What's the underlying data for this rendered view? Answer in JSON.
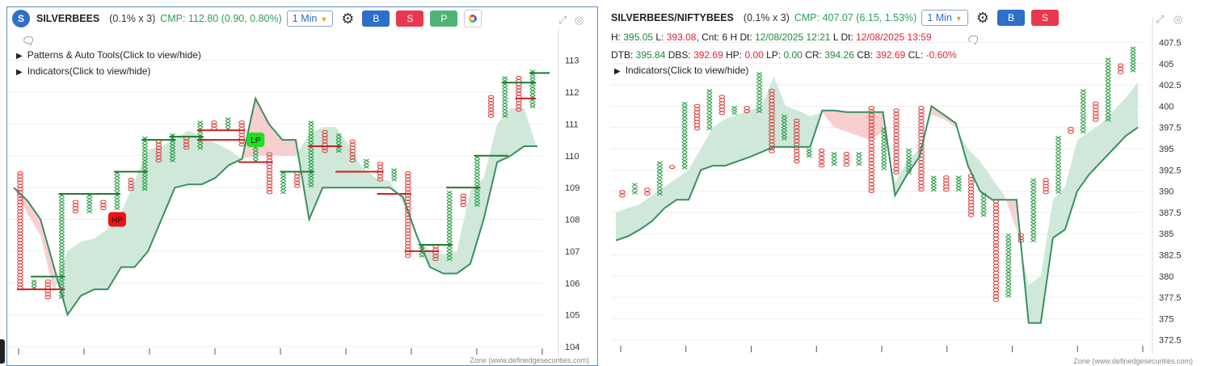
{
  "panels": [
    {
      "symbol": "SILVERBEES",
      "avatar": "S",
      "qty": "(0.1% x 3)",
      "cmp": "CMP: 112.80 (0.90, 0.80%)",
      "timeframe": "1 Min",
      "buttons": {
        "buy": "B",
        "sell": "S",
        "p": "P"
      },
      "toggles": [
        "Patterns & Auto Tools(Click to view/hide)",
        "Indicators(Click to view/hide)"
      ],
      "zone": "Zone (www.definedgesecurities.com)"
    },
    {
      "symbol": "SILVERBEES/NIFTYBEES",
      "qty": "(0.1% x 3)",
      "cmp": "CMP: 407.07 (6.15, 1.53%)",
      "timeframe": "1 Min",
      "buttons": {
        "buy": "B",
        "sell": "S"
      },
      "info1": [
        {
          "t": "H: ",
          "c": ""
        },
        {
          "t": "395.05",
          "c": "g"
        },
        {
          "t": " L: ",
          "c": ""
        },
        {
          "t": "393.08",
          "c": "r"
        },
        {
          "t": ", Cnt: 6 H Dt: ",
          "c": ""
        },
        {
          "t": "12/08/2025 12:21",
          "c": "g"
        },
        {
          "t": " L Dt: ",
          "c": ""
        },
        {
          "t": "12/08/2025 13:59",
          "c": "r"
        }
      ],
      "info2": [
        {
          "t": "DTB: ",
          "c": ""
        },
        {
          "t": "395.84",
          "c": "g"
        },
        {
          "t": " DBS: ",
          "c": ""
        },
        {
          "t": "392.69",
          "c": "r"
        },
        {
          "t": " HP: ",
          "c": ""
        },
        {
          "t": "0.00",
          "c": "r"
        },
        {
          "t": " LP: ",
          "c": ""
        },
        {
          "t": "0.00",
          "c": "g"
        },
        {
          "t": " CR: ",
          "c": ""
        },
        {
          "t": "394.26",
          "c": "g"
        },
        {
          "t": " CB: ",
          "c": ""
        },
        {
          "t": "392.69",
          "c": "r"
        },
        {
          "t": " CL: ",
          "c": ""
        },
        {
          "t": "-0.60%",
          "c": "r"
        }
      ],
      "toggles": [
        "Indicators(Click to view/hide)"
      ],
      "zone": "Zone (www.definedgesecurities.com)"
    }
  ],
  "colors": {
    "x": "#1f9a3c",
    "o": "#e23a3a",
    "line": "#3a8f60",
    "fill_up": "#cfe8da",
    "fill_dn": "#f7cfcf",
    "level_g": "#1f7a2c",
    "level_r": "#cc1f1f"
  },
  "chart_data": [
    {
      "type": "point-and-figure",
      "title": "SILVERBEES",
      "ylim": [
        104,
        113.5
      ],
      "yticks": [
        104,
        105,
        106,
        107,
        108,
        109,
        110,
        111,
        112,
        113
      ],
      "columns": [
        {
          "t": "O",
          "lo": 105.8,
          "hi": 109.5
        },
        {
          "t": "X",
          "lo": 105.8,
          "hi": 106.1
        },
        {
          "t": "O",
          "lo": 105.5,
          "hi": 106.1
        },
        {
          "t": "X",
          "lo": 105.5,
          "hi": 108.8
        },
        {
          "t": "O",
          "lo": 108.2,
          "hi": 108.6
        },
        {
          "t": "X",
          "lo": 108.2,
          "hi": 108.8
        },
        {
          "t": "O",
          "lo": 108.3,
          "hi": 108.6
        },
        {
          "t": "X",
          "lo": 108.3,
          "hi": 109.5
        },
        {
          "t": "O",
          "lo": 108.9,
          "hi": 109.3
        },
        {
          "t": "X",
          "lo": 108.9,
          "hi": 110.6
        },
        {
          "t": "O",
          "lo": 109.8,
          "hi": 110.5
        },
        {
          "t": "X",
          "lo": 109.8,
          "hi": 110.7
        },
        {
          "t": "O",
          "lo": 110.2,
          "hi": 110.6
        },
        {
          "t": "X",
          "lo": 110.2,
          "hi": 111.1
        },
        {
          "t": "O",
          "lo": 110.8,
          "hi": 111.1
        },
        {
          "t": "X",
          "lo": 110.8,
          "hi": 111.2
        },
        {
          "t": "O",
          "lo": 110.3,
          "hi": 111.1
        },
        {
          "t": "X",
          "lo": 109.8,
          "hi": 110.4
        },
        {
          "t": "O",
          "lo": 108.8,
          "hi": 110.1
        },
        {
          "t": "X",
          "lo": 108.8,
          "hi": 109.5
        },
        {
          "t": "O",
          "lo": 109.0,
          "hi": 109.5
        },
        {
          "t": "X",
          "lo": 109.0,
          "hi": 111.1
        },
        {
          "t": "O",
          "lo": 110.1,
          "hi": 110.8
        },
        {
          "t": "X",
          "lo": 110.1,
          "hi": 110.7
        },
        {
          "t": "O",
          "lo": 109.8,
          "hi": 110.5
        },
        {
          "t": "X",
          "lo": 109.6,
          "hi": 109.9
        },
        {
          "t": "O",
          "lo": 109.2,
          "hi": 109.8
        },
        {
          "t": "X",
          "lo": 109.2,
          "hi": 109.6
        },
        {
          "t": "O",
          "lo": 106.8,
          "hi": 109.5
        },
        {
          "t": "X",
          "lo": 106.8,
          "hi": 107.2
        },
        {
          "t": "O",
          "lo": 106.7,
          "hi": 107.2
        },
        {
          "t": "X",
          "lo": 106.7,
          "hi": 108.9
        },
        {
          "t": "O",
          "lo": 108.4,
          "hi": 108.8
        },
        {
          "t": "X",
          "lo": 108.4,
          "hi": 110.0
        },
        {
          "t": "O",
          "lo": 111.2,
          "hi": 111.9
        },
        {
          "t": "X",
          "lo": 111.2,
          "hi": 112.5
        },
        {
          "t": "O",
          "lo": 111.4,
          "hi": 112.5
        },
        {
          "t": "X",
          "lo": 111.5,
          "hi": 112.7
        }
      ],
      "levels": [
        {
          "y": 105.8,
          "x0": 0,
          "x1": 3,
          "c": "r"
        },
        {
          "y": 106.2,
          "x0": 1,
          "x1": 3,
          "c": "g"
        },
        {
          "y": 108.8,
          "x0": 3,
          "x1": 5,
          "c": "g"
        },
        {
          "y": 108.8,
          "x0": 5,
          "x1": 7,
          "c": "g"
        },
        {
          "y": 109.5,
          "x0": 7,
          "x1": 9,
          "c": "g"
        },
        {
          "y": 110.5,
          "x0": 9,
          "x1": 11,
          "c": "g"
        },
        {
          "y": 110.6,
          "x0": 11,
          "x1": 13,
          "c": "g"
        },
        {
          "y": 110.8,
          "x0": 13,
          "x1": 16,
          "c": "r"
        },
        {
          "y": 110.5,
          "x0": 13,
          "x1": 16,
          "c": "r"
        },
        {
          "y": 109.8,
          "x0": 16,
          "x1": 18,
          "c": "r"
        },
        {
          "y": 109.5,
          "x0": 19,
          "x1": 21,
          "c": "g"
        },
        {
          "y": 110.3,
          "x0": 21,
          "x1": 23,
          "c": "r"
        },
        {
          "y": 109.5,
          "x0": 23,
          "x1": 26,
          "c": "r"
        },
        {
          "y": 108.8,
          "x0": 26,
          "x1": 28,
          "c": "r"
        },
        {
          "y": 107.0,
          "x0": 28,
          "x1": 30,
          "c": "r"
        },
        {
          "y": 107.2,
          "x0": 29,
          "x1": 31,
          "c": "g"
        },
        {
          "y": 109.0,
          "x0": 31,
          "x1": 33,
          "c": "g"
        },
        {
          "y": 110.0,
          "x0": 33,
          "x1": 35,
          "c": "g"
        },
        {
          "y": 112.3,
          "x0": 35,
          "x1": 37,
          "c": "g"
        },
        {
          "y": 112.6,
          "x0": 37,
          "x1": 38,
          "c": "g"
        },
        {
          "y": 111.8,
          "x0": 36,
          "x1": 37,
          "c": "r"
        }
      ],
      "line": [
        109.0,
        108.6,
        108.0,
        106.5,
        105.0,
        105.6,
        105.8,
        105.8,
        106.5,
        106.5,
        107.0,
        108.0,
        109.0,
        109.1,
        109.1,
        109.3,
        109.7,
        109.9,
        111.8,
        111.0,
        110.5,
        110.5,
        108.0,
        109.0,
        109.0,
        109.0,
        109.0,
        109.0,
        109.0,
        108.7,
        107.5,
        106.5,
        106.3,
        106.3,
        106.6,
        108.0,
        109.8,
        110.0,
        110.3,
        110.3
      ],
      "band": [
        109.0,
        108.2,
        107.5,
        105.7,
        107.0,
        107.3,
        107.4,
        107.7,
        108.2,
        109.2,
        110.2,
        110.3,
        110.5,
        110.8,
        110.6,
        110.4,
        110.2,
        109.9,
        110.0,
        110.0,
        110.0,
        110.0,
        110.7,
        110.9,
        110.9,
        110.3,
        109.6,
        109.3,
        109.2,
        108.5,
        107.4,
        107.0,
        106.9,
        107.0,
        108.9,
        109.3,
        111.0,
        111.5,
        111.5,
        110.2
      ],
      "annotations": [
        {
          "label": "HP",
          "col": 7,
          "y": 108.0,
          "c": "r"
        },
        {
          "label": "LP",
          "col": 17,
          "y": 110.5,
          "c": "g"
        }
      ],
      "zone": "Zone (www.definedgesecurities.com)"
    },
    {
      "type": "point-and-figure",
      "title": "SILVERBEES/NIFTYBEES",
      "ylim": [
        372,
        408.5
      ],
      "yticks": [
        372.5,
        375,
        377.5,
        380,
        382.5,
        385,
        387.5,
        390,
        392.5,
        395,
        397.5,
        400,
        402.5,
        405,
        407.5
      ],
      "columns": [
        {
          "t": "O",
          "lo": 389.3,
          "hi": 390.1
        },
        {
          "t": "X",
          "lo": 389.6,
          "hi": 391.0
        },
        {
          "t": "O",
          "lo": 389.5,
          "hi": 390.4
        },
        {
          "t": "X",
          "lo": 389.5,
          "hi": 393.5
        },
        {
          "t": "O",
          "lo": 392.6,
          "hi": 393.1
        },
        {
          "t": "X",
          "lo": 392.6,
          "hi": 400.5
        },
        {
          "t": "O",
          "lo": 397.2,
          "hi": 400.2
        },
        {
          "t": "X",
          "lo": 397.2,
          "hi": 402.0
        },
        {
          "t": "O",
          "lo": 399.0,
          "hi": 401.3
        },
        {
          "t": "X",
          "lo": 399.0,
          "hi": 400.0
        },
        {
          "t": "O",
          "lo": 399.2,
          "hi": 400.0
        },
        {
          "t": "X",
          "lo": 399.2,
          "hi": 404.0
        },
        {
          "t": "O",
          "lo": 394.5,
          "hi": 402.0
        },
        {
          "t": "X",
          "lo": 396.0,
          "hi": 399.0
        },
        {
          "t": "O",
          "lo": 393.3,
          "hi": 398.5
        },
        {
          "t": "X",
          "lo": 394.0,
          "hi": 395.0
        },
        {
          "t": "O",
          "lo": 392.8,
          "hi": 395.0
        },
        {
          "t": "X",
          "lo": 393.0,
          "hi": 394.6
        },
        {
          "t": "O",
          "lo": 392.9,
          "hi": 394.6
        },
        {
          "t": "X",
          "lo": 393.0,
          "hi": 394.6
        },
        {
          "t": "O",
          "lo": 389.8,
          "hi": 400.0
        },
        {
          "t": "X",
          "lo": 392.5,
          "hi": 397.5
        },
        {
          "t": "O",
          "lo": 392.0,
          "hi": 399.7
        },
        {
          "t": "X",
          "lo": 392.0,
          "hi": 395.0
        },
        {
          "t": "O",
          "lo": 390.0,
          "hi": 400.0
        },
        {
          "t": "X",
          "lo": 390.0,
          "hi": 391.8
        },
        {
          "t": "O",
          "lo": 390.0,
          "hi": 391.8
        },
        {
          "t": "X",
          "lo": 390.0,
          "hi": 391.8
        },
        {
          "t": "O",
          "lo": 387.0,
          "hi": 392.0
        },
        {
          "t": "X",
          "lo": 387.0,
          "hi": 389.8
        },
        {
          "t": "O",
          "lo": 377.0,
          "hi": 389.0
        },
        {
          "t": "X",
          "lo": 377.5,
          "hi": 385.0
        },
        {
          "t": "O",
          "lo": 384.0,
          "hi": 385.0
        },
        {
          "t": "X",
          "lo": 384.0,
          "hi": 391.5
        },
        {
          "t": "O",
          "lo": 389.7,
          "hi": 391.5
        },
        {
          "t": "X",
          "lo": 389.7,
          "hi": 396.5
        },
        {
          "t": "O",
          "lo": 396.8,
          "hi": 397.5
        },
        {
          "t": "X",
          "lo": 396.8,
          "hi": 402.0
        },
        {
          "t": "O",
          "lo": 398.2,
          "hi": 400.5
        },
        {
          "t": "X",
          "lo": 398.2,
          "hi": 405.7
        },
        {
          "t": "O",
          "lo": 403.8,
          "hi": 405.0
        },
        {
          "t": "X",
          "lo": 404.0,
          "hi": 407.0
        }
      ],
      "line": [
        384.2,
        384.7,
        385.5,
        386.5,
        388.0,
        389.0,
        389.0,
        392.5,
        393.0,
        393.0,
        393.5,
        394.0,
        394.6,
        395.2,
        395.2,
        395.2,
        395.2,
        399.5,
        399.5,
        399.3,
        399.3,
        399.3,
        399.3,
        389.5,
        392.0,
        394.0,
        400.0,
        399.0,
        398.0,
        393.0,
        390.0,
        389.0,
        389.0,
        389.0,
        374.5,
        374.5,
        384.5,
        385.5,
        390.0,
        392.0,
        393.5,
        395.0,
        396.5,
        397.5
      ],
      "band": [
        387.5,
        388.0,
        388.5,
        389.5,
        390.5,
        391.5,
        392.5,
        395.0,
        397.5,
        398.5,
        399.0,
        399.5,
        400.0,
        403.5,
        400.0,
        399.5,
        398.8,
        399.3,
        397.5,
        397.0,
        396.5,
        396.0,
        397.0,
        391.0,
        393.5,
        395.0,
        399.0,
        398.5,
        397.5,
        395.0,
        393.5,
        391.5,
        389.5,
        385.5,
        379.0,
        380.0,
        389.0,
        390.5,
        396.0,
        397.0,
        398.0,
        399.5,
        401.0,
        402.8
      ],
      "zone": "Zone (www.definedgesecurities.com)"
    }
  ]
}
